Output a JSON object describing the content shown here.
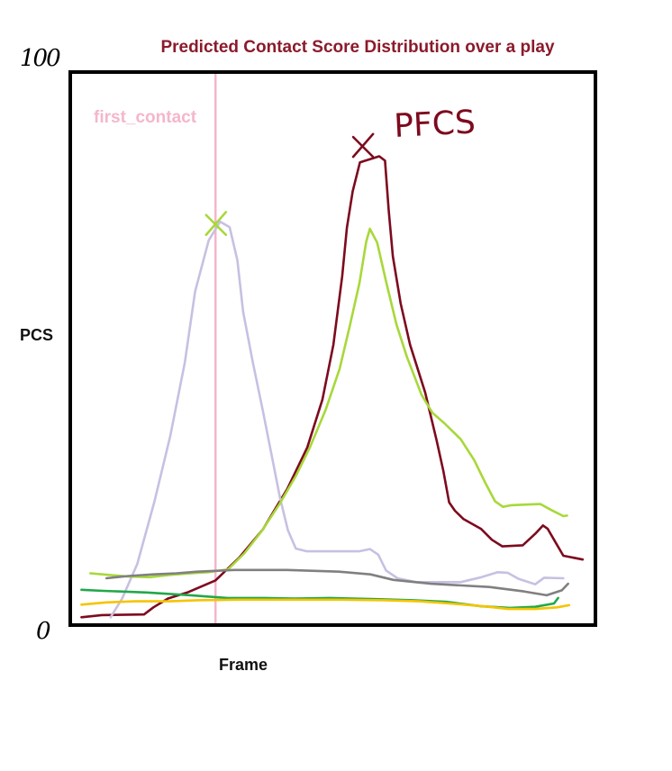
{
  "chart_data": {
    "type": "line",
    "title": "Predicted Contact Score Distribution over a play",
    "xlabel": "Frame",
    "ylabel": "PCS",
    "y_tick_labels": [
      "0",
      "100"
    ],
    "ylim": [
      0,
      100
    ],
    "xlim": [
      0,
      100
    ],
    "grid": false,
    "annotations": [
      {
        "text": "first_contact",
        "type": "vertical_line",
        "x": 27.5,
        "color": "#f4b6cc"
      },
      {
        "text": "PFCS",
        "type": "marker_label",
        "color": "#7d0a1e"
      }
    ],
    "peak_markers": [
      {
        "x": 27.6,
        "y": 72.5,
        "color": "#a8d83a"
      },
      {
        "x": 55.8,
        "y": 86.7,
        "color": "#7d0a1e"
      }
    ],
    "series": [
      {
        "color": "#7d0a1e",
        "points": [
          [
            1.8,
            1.1
          ],
          [
            5.7,
            1.5
          ],
          [
            13.8,
            1.6
          ],
          [
            15.6,
            2.9
          ],
          [
            18.4,
            4.5
          ],
          [
            22.1,
            5.6
          ],
          [
            27.5,
            7.8
          ],
          [
            32.0,
            11.9
          ],
          [
            36.6,
            17.1
          ],
          [
            41.3,
            24.5
          ],
          [
            45.1,
            32.0
          ],
          [
            48.0,
            40.7
          ],
          [
            50.1,
            50.7
          ],
          [
            51.8,
            63.2
          ],
          [
            52.7,
            72.0
          ],
          [
            53.8,
            78.6
          ],
          [
            55.2,
            83.9
          ],
          [
            58.9,
            85.0
          ],
          [
            60.0,
            84.2
          ],
          [
            60.7,
            75.2
          ],
          [
            61.5,
            66.8
          ],
          [
            63.0,
            58.2
          ],
          [
            64.8,
            50.7
          ],
          [
            67.7,
            42.0
          ],
          [
            69.9,
            33.3
          ],
          [
            71.2,
            27.7
          ],
          [
            72.3,
            22.0
          ],
          [
            73.4,
            20.5
          ],
          [
            75.0,
            19.0
          ],
          [
            78.4,
            17.2
          ],
          [
            80.5,
            15.2
          ],
          [
            82.5,
            14.0
          ],
          [
            86.4,
            14.2
          ],
          [
            88.8,
            16.3
          ],
          [
            90.3,
            17.8
          ],
          [
            91.2,
            17.2
          ],
          [
            92.9,
            14.4
          ],
          [
            94.2,
            12.3
          ],
          [
            97.9,
            11.6
          ]
        ]
      },
      {
        "color": "#c7c0e2",
        "points": [
          [
            7.4,
            1.1
          ],
          [
            9.6,
            4.5
          ],
          [
            12.5,
            10.8
          ],
          [
            15.8,
            22.2
          ],
          [
            18.8,
            34.0
          ],
          [
            21.6,
            47.4
          ],
          [
            23.6,
            60.4
          ],
          [
            26.2,
            69.7
          ],
          [
            28.4,
            73.1
          ],
          [
            30.2,
            72.1
          ],
          [
            31.7,
            66.1
          ],
          [
            32.8,
            56.7
          ],
          [
            34.7,
            47.3
          ],
          [
            36.6,
            38.6
          ],
          [
            38.3,
            30.4
          ],
          [
            39.9,
            22.7
          ],
          [
            41.4,
            16.9
          ],
          [
            42.9,
            13.6
          ],
          [
            45.0,
            13.1
          ],
          [
            55.0,
            13.1
          ],
          [
            57.1,
            13.5
          ],
          [
            58.7,
            12.5
          ],
          [
            60.2,
            9.6
          ],
          [
            62.4,
            8.2
          ],
          [
            66.0,
            7.5
          ],
          [
            74.5,
            7.5
          ],
          [
            78.5,
            8.4
          ],
          [
            81.6,
            9.3
          ],
          [
            83.5,
            9.2
          ],
          [
            85.6,
            8.1
          ],
          [
            88.8,
            7.1
          ],
          [
            90.5,
            8.3
          ],
          [
            94.2,
            8.2
          ]
        ]
      },
      {
        "color": "#a8d83a",
        "points": [
          [
            3.5,
            9.1
          ],
          [
            7.1,
            8.8
          ],
          [
            10.8,
            8.5
          ],
          [
            14.9,
            8.4
          ],
          [
            18.7,
            8.8
          ],
          [
            22.8,
            9.1
          ],
          [
            26.0,
            9.3
          ],
          [
            29.9,
            9.8
          ],
          [
            33.0,
            12.7
          ],
          [
            36.3,
            16.7
          ],
          [
            39.7,
            21.6
          ],
          [
            42.9,
            26.8
          ],
          [
            45.6,
            32.0
          ],
          [
            48.6,
            38.8
          ],
          [
            51.3,
            46.3
          ],
          [
            53.2,
            53.9
          ],
          [
            55.1,
            61.9
          ],
          [
            56.4,
            69.5
          ],
          [
            57.1,
            71.8
          ],
          [
            58.5,
            69.3
          ],
          [
            60.2,
            62.2
          ],
          [
            62.2,
            54.4
          ],
          [
            64.2,
            48.5
          ],
          [
            67.0,
            41.6
          ],
          [
            69.1,
            38.3
          ],
          [
            71.4,
            36.4
          ],
          [
            74.5,
            33.5
          ],
          [
            77.1,
            29.7
          ],
          [
            79.1,
            25.8
          ],
          [
            81.1,
            22.2
          ],
          [
            82.6,
            21.2
          ],
          [
            84.2,
            21.5
          ],
          [
            87.1,
            21.6
          ],
          [
            89.8,
            21.7
          ],
          [
            91.9,
            20.6
          ],
          [
            94.2,
            19.5
          ],
          [
            94.9,
            19.6
          ]
        ]
      },
      {
        "color": "#808080",
        "points": [
          [
            6.6,
            8.2
          ],
          [
            10.8,
            8.6
          ],
          [
            15.6,
            8.9
          ],
          [
            20.0,
            9.1
          ],
          [
            24.0,
            9.4
          ],
          [
            31.2,
            9.7
          ],
          [
            41.2,
            9.7
          ],
          [
            51.2,
            9.4
          ],
          [
            57.2,
            8.9
          ],
          [
            61.6,
            7.9
          ],
          [
            68.8,
            7.2
          ],
          [
            80.0,
            6.6
          ],
          [
            86.6,
            5.8
          ],
          [
            91.0,
            5.1
          ],
          [
            93.9,
            6.0
          ],
          [
            95.1,
            7.2
          ]
        ]
      },
      {
        "color": "#22a84a",
        "points": [
          [
            1.8,
            6.1
          ],
          [
            6.0,
            5.9
          ],
          [
            14.3,
            5.6
          ],
          [
            22.8,
            5.1
          ],
          [
            29.8,
            4.6
          ],
          [
            36.8,
            4.6
          ],
          [
            42.6,
            4.5
          ],
          [
            49.4,
            4.6
          ],
          [
            58.2,
            4.4
          ],
          [
            65.4,
            4.2
          ],
          [
            71.8,
            3.9
          ],
          [
            78.4,
            3.1
          ],
          [
            83.9,
            2.8
          ],
          [
            88.8,
            3.0
          ],
          [
            92.4,
            3.6
          ],
          [
            93.2,
            4.6
          ]
        ]
      },
      {
        "color": "#f5c400",
        "points": [
          [
            1.8,
            3.4
          ],
          [
            6.6,
            3.8
          ],
          [
            12.0,
            4.0
          ],
          [
            18.8,
            4.0
          ],
          [
            24.0,
            4.2
          ],
          [
            31.4,
            4.3
          ],
          [
            41.2,
            4.3
          ],
          [
            51.2,
            4.3
          ],
          [
            60.0,
            4.2
          ],
          [
            66.6,
            4.0
          ],
          [
            72.4,
            3.6
          ],
          [
            78.8,
            3.1
          ],
          [
            83.6,
            2.6
          ],
          [
            88.8,
            2.6
          ],
          [
            93.0,
            2.9
          ],
          [
            95.3,
            3.3
          ]
        ]
      }
    ]
  }
}
